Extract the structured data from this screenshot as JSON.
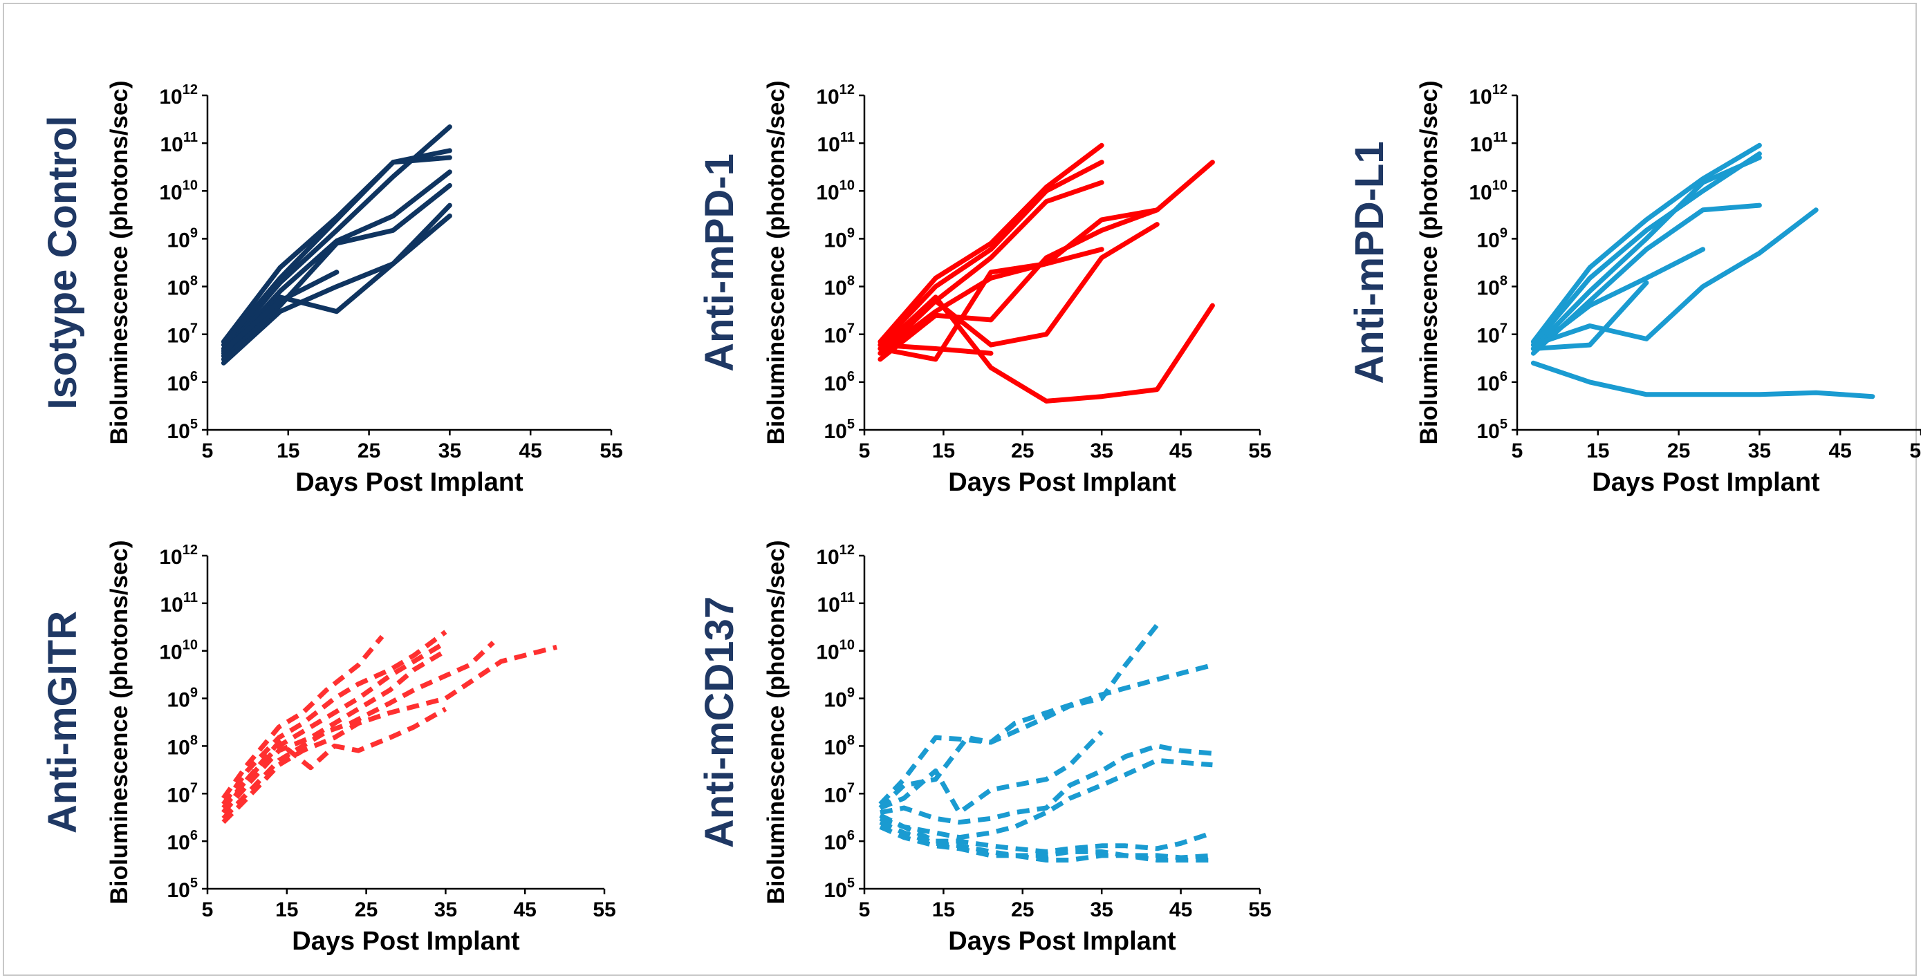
{
  "figure": {
    "x_ticks": [
      5,
      15,
      25,
      35,
      45,
      55
    ],
    "y_tick_base": "10",
    "y_tick_exponents": [
      5,
      6,
      7,
      8,
      9,
      10,
      11,
      12
    ],
    "xlabel": "Days Post Implant",
    "ylabel": "Bioluminescence (photons/sec)",
    "title_color": "#1f3864"
  },
  "chart_data": [
    {
      "type": "line",
      "title": "Isotype Control",
      "xlabel": "Days Post Implant",
      "ylabel": "Bioluminescence (photons/sec)",
      "xlim": [
        5,
        55
      ],
      "ylim": [
        100000,
        1000000000000
      ],
      "y_scale": "log",
      "color": "#0f3460",
      "line_style": "solid",
      "series": [
        {
          "x": [
            7,
            14,
            21,
            28,
            35
          ],
          "y": [
            7000000.0,
            250000000.0,
            2800000000.0,
            40000000000.0,
            70000000000.0
          ]
        },
        {
          "x": [
            7,
            14,
            21,
            28,
            35
          ],
          "y": [
            5000000.0,
            120000000.0,
            1500000000.0,
            20000000000.0,
            220000000000.0
          ]
        },
        {
          "x": [
            7,
            14,
            21,
            28,
            35
          ],
          "y": [
            4000000.0,
            80000000.0,
            900000000.0,
            3000000000.0,
            25000000000.0
          ]
        },
        {
          "x": [
            7,
            14,
            21,
            28,
            35
          ],
          "y": [
            3500000.0,
            60000000.0,
            30000000.0,
            300000000.0,
            5000000000.0
          ]
        },
        {
          "x": [
            7,
            14,
            21,
            28,
            35
          ],
          "y": [
            3000000.0,
            40000000.0,
            800000000.0,
            1500000000.0,
            13000000000.0
          ]
        },
        {
          "x": [
            7,
            14,
            21,
            28,
            35
          ],
          "y": [
            2500000.0,
            30000000.0,
            100000000.0,
            300000000.0,
            3000000000.0
          ]
        },
        {
          "x": [
            7,
            14,
            21,
            28,
            35
          ],
          "y": [
            6000000.0,
            150000000.0,
            2500000000.0,
            40000000000.0,
            50000000000.0
          ]
        },
        {
          "x": [
            7,
            14,
            21
          ],
          "y": [
            4500000.0,
            50000000.0,
            200000000.0
          ]
        }
      ]
    },
    {
      "type": "line",
      "title": "Anti-mPD-1",
      "xlabel": "Days Post Implant",
      "ylabel": "Bioluminescence (photons/sec)",
      "xlim": [
        5,
        55
      ],
      "ylim": [
        100000,
        1000000000000
      ],
      "y_scale": "log",
      "color": "#ff0000",
      "line_style": "solid",
      "series": [
        {
          "x": [
            7,
            14,
            21,
            28,
            35
          ],
          "y": [
            7000000.0,
            150000000.0,
            800000000.0,
            12000000000.0,
            90000000000.0
          ]
        },
        {
          "x": [
            7,
            14,
            21,
            28,
            35
          ],
          "y": [
            6000000.0,
            100000000.0,
            600000000.0,
            10000000000.0,
            40000000000.0
          ]
        },
        {
          "x": [
            7,
            14,
            21,
            28,
            35
          ],
          "y": [
            5000000.0,
            50000000.0,
            400000000.0,
            6000000000.0,
            15000000000.0
          ]
        },
        {
          "x": [
            7,
            14,
            21,
            28,
            35,
            42
          ],
          "y": [
            4000000.0,
            30000000.0,
            150000000.0,
            300000000.0,
            2500000000.0,
            4000000000.0
          ]
        },
        {
          "x": [
            7,
            14,
            21,
            28,
            35,
            42,
            49
          ],
          "y": [
            3000000.0,
            25000000.0,
            20000000.0,
            400000000.0,
            1500000000.0,
            4000000000.0,
            40000000000.0
          ]
        },
        {
          "x": [
            7,
            14,
            21,
            28,
            35
          ],
          "y": [
            5000000.0,
            3000000.0,
            200000000.0,
            300000000.0,
            600000000.0
          ]
        },
        {
          "x": [
            7,
            14,
            21,
            28,
            35,
            42
          ],
          "y": [
            4000000.0,
            50000000.0,
            6000000.0,
            10000000.0,
            400000000.0,
            2000000000.0
          ]
        },
        {
          "x": [
            7,
            14,
            21,
            28,
            35,
            42,
            49
          ],
          "y": [
            5000000.0,
            60000000.0,
            2000000.0,
            400000.0,
            500000.0,
            700000.0,
            40000000.0
          ]
        },
        {
          "x": [
            7,
            14,
            21
          ],
          "y": [
            6000000.0,
            5000000.0,
            4000000.0
          ]
        }
      ]
    },
    {
      "type": "line",
      "title": "Anti-mPD-L1",
      "xlabel": "Days Post Implant",
      "ylabel": "Bioluminescence (photons/sec)",
      "xlim": [
        5,
        55
      ],
      "ylim": [
        100000,
        1000000000000
      ],
      "y_scale": "log",
      "color": "#1a9bd1",
      "line_style": "solid",
      "series": [
        {
          "x": [
            7,
            14,
            21,
            28,
            35
          ],
          "y": [
            7000000.0,
            250000000.0,
            2500000000.0,
            18000000000.0,
            90000000000.0
          ]
        },
        {
          "x": [
            7,
            14,
            21,
            28,
            35
          ],
          "y": [
            6000000.0,
            150000000.0,
            1500000000.0,
            10000000000.0,
            60000000000.0
          ]
        },
        {
          "x": [
            7,
            14,
            21,
            28,
            35
          ],
          "y": [
            5000000.0,
            80000000.0,
            1000000000.0,
            15000000000.0,
            50000000000.0
          ]
        },
        {
          "x": [
            7,
            14,
            21,
            28,
            35
          ],
          "y": [
            4000000.0,
            50000000.0,
            600000000.0,
            4000000000.0,
            5000000000.0
          ]
        },
        {
          "x": [
            7,
            14,
            21,
            28
          ],
          "y": [
            5000000.0,
            40000000.0,
            150000000.0,
            600000000.0
          ]
        },
        {
          "x": [
            7,
            14,
            21,
            28,
            35,
            42
          ],
          "y": [
            6000000.0,
            15000000.0,
            8000000.0,
            100000000.0,
            500000000.0,
            4000000000.0
          ]
        },
        {
          "x": [
            7,
            14,
            21
          ],
          "y": [
            5000000.0,
            6000000.0,
            120000000.0
          ]
        },
        {
          "x": [
            7,
            14,
            21,
            28,
            35,
            42,
            49
          ],
          "y": [
            2500000.0,
            1000000.0,
            550000.0,
            550000.0,
            550000.0,
            600000.0,
            500000.0
          ]
        }
      ]
    },
    {
      "type": "line",
      "title": "Anti-mGITR",
      "xlabel": "Days Post Implant",
      "ylabel": "Bioluminescence (photons/sec)",
      "xlim": [
        5,
        55
      ],
      "ylim": [
        100000,
        1000000000000
      ],
      "y_scale": "log",
      "color": "#ff3030",
      "line_style": "dashed",
      "series": [
        {
          "x": [
            7,
            10,
            14,
            17,
            20,
            24,
            27
          ],
          "y": [
            8000000.0,
            40000000.0,
            250000000.0,
            500000000.0,
            1500000000.0,
            5000000000.0,
            20000000000.0
          ]
        },
        {
          "x": [
            7,
            10,
            14,
            17,
            21,
            24,
            28,
            31,
            35
          ],
          "y": [
            6000000.0,
            30000000.0,
            150000000.0,
            300000000.0,
            1000000000.0,
            2000000000.0,
            4000000000.0,
            8000000000.0,
            25000000000.0
          ]
        },
        {
          "x": [
            7,
            10,
            14,
            17,
            21,
            24,
            28,
            31,
            35
          ],
          "y": [
            5000000.0,
            20000000.0,
            100000000.0,
            200000000.0,
            500000000.0,
            1000000000.0,
            3000000000.0,
            6000000000.0,
            15000000000.0
          ]
        },
        {
          "x": [
            7,
            10,
            14,
            18,
            21,
            24,
            28,
            31,
            35
          ],
          "y": [
            4000000.0,
            15000000.0,
            80000000.0,
            150000000.0,
            300000000.0,
            600000000.0,
            1500000000.0,
            4000000000.0,
            10000000000.0
          ]
        },
        {
          "x": [
            7,
            10,
            14,
            17,
            20,
            23,
            28,
            31,
            35,
            38,
            41
          ],
          "y": [
            3000000.0,
            10000000.0,
            50000000.0,
            100000000.0,
            200000000.0,
            300000000.0,
            800000000.0,
            1500000000.0,
            3000000000.0,
            5000000000.0,
            15000000000.0
          ]
        },
        {
          "x": [
            7,
            10,
            14,
            17,
            21,
            24,
            28,
            35,
            42,
            49
          ],
          "y": [
            2500000.0,
            8000000.0,
            40000000.0,
            80000000.0,
            150000000.0,
            300000000.0,
            500000000.0,
            1000000000.0,
            6000000000.0,
            12000000000.0
          ]
        },
        {
          "x": [
            7,
            10,
            14,
            18,
            21,
            24,
            28,
            31,
            35
          ],
          "y": [
            4000000.0,
            20000000.0,
            120000000.0,
            35000000.0,
            100000000.0,
            80000000.0,
            150000000.0,
            250000000.0,
            600000000.0
          ]
        }
      ]
    },
    {
      "type": "line",
      "title": "Anti-mCD137",
      "xlabel": "Days Post Implant",
      "ylabel": "Bioluminescence (photons/sec)",
      "xlim": [
        5,
        55
      ],
      "ylim": [
        100000,
        1000000000000
      ],
      "y_scale": "log",
      "color": "#1a9bd1",
      "line_style": "dashed",
      "series": [
        {
          "x": [
            7,
            10,
            14,
            17,
            21,
            24,
            28,
            31,
            35,
            38,
            42
          ],
          "y": [
            6000000.0,
            20000000.0,
            150000000.0,
            140000000.0,
            120000000.0,
            200000000.0,
            400000000.0,
            700000000.0,
            1000000000.0,
            5000000000.0,
            35000000000.0
          ]
        },
        {
          "x": [
            7,
            10,
            14,
            18,
            21,
            24,
            28,
            35,
            42,
            49
          ],
          "y": [
            5000000.0,
            15000000.0,
            20000000.0,
            150000000.0,
            120000000.0,
            300000000.0,
            500000000.0,
            1200000000.0,
            2500000000.0,
            5000000000.0
          ]
        },
        {
          "x": [
            7,
            10,
            14,
            17,
            21,
            24,
            28,
            31,
            35
          ],
          "y": [
            5000000.0,
            8000000.0,
            30000000.0,
            4000000.0,
            12000000.0,
            15000000.0,
            20000000.0,
            40000000.0,
            200000000.0
          ]
        },
        {
          "x": [
            7,
            10,
            14,
            17,
            21,
            24,
            28,
            31,
            35,
            38,
            42,
            45,
            49
          ],
          "y": [
            4000000.0,
            5000000.0,
            3000000.0,
            2500000.0,
            3000000.0,
            4000000.0,
            5000000.0,
            15000000.0,
            30000000.0,
            60000000.0,
            100000000.0,
            80000000.0,
            70000000.0
          ]
        },
        {
          "x": [
            7,
            10,
            14,
            17,
            21,
            24,
            28,
            31,
            35,
            38,
            42,
            49
          ],
          "y": [
            3500000.0,
            2000000.0,
            1500000.0,
            1200000.0,
            1500000.0,
            2000000.0,
            4000000.0,
            8000000.0,
            15000000.0,
            25000000.0,
            50000000.0,
            40000000.0
          ]
        },
        {
          "x": [
            7,
            10,
            14,
            17,
            21,
            24,
            28,
            31,
            35,
            38,
            42,
            45,
            49
          ],
          "y": [
            3000000.0,
            2000000.0,
            1000000.0,
            1000000.0,
            800000.0,
            700000.0,
            600000.0,
            700000.0,
            800000.0,
            800000.0,
            700000.0,
            900000.0,
            1500000.0
          ]
        },
        {
          "x": [
            7,
            10,
            14,
            17,
            21,
            24,
            28,
            31,
            35,
            38,
            42,
            45,
            49
          ],
          "y": [
            2500000.0,
            1500000.0,
            900000.0,
            800000.0,
            600000.0,
            500000.0,
            500000.0,
            600000.0,
            600000.0,
            500000.0,
            500000.0,
            450000.0,
            500000.0
          ]
        },
        {
          "x": [
            7,
            10,
            14,
            17,
            21,
            24,
            28,
            31,
            35,
            38,
            42,
            45,
            49
          ],
          "y": [
            2000000.0,
            1200000.0,
            800000.0,
            700000.0,
            500000.0,
            500000.0,
            400000.0,
            400000.0,
            500000.0,
            500000.0,
            400000.0,
            400000.0,
            400000.0
          ]
        }
      ]
    }
  ]
}
